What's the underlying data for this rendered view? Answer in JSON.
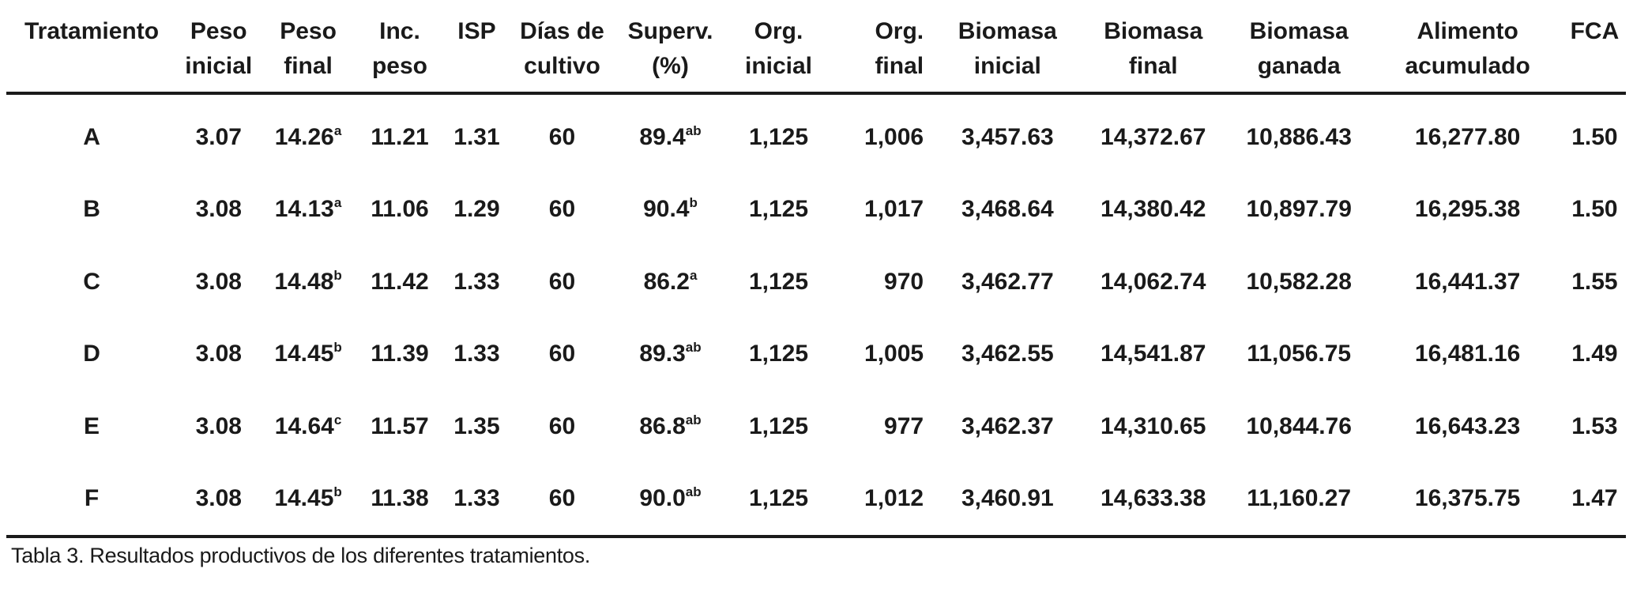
{
  "table": {
    "headers": [
      {
        "key": "tratamiento",
        "lines": [
          "Tratamiento"
        ]
      },
      {
        "key": "peso_inicial",
        "lines": [
          "Peso",
          "inicial"
        ]
      },
      {
        "key": "peso_final",
        "lines": [
          "Peso",
          "final"
        ]
      },
      {
        "key": "inc_peso",
        "lines": [
          "Inc.",
          "peso"
        ]
      },
      {
        "key": "isp",
        "lines": [
          "ISP"
        ]
      },
      {
        "key": "dias_cultivo",
        "lines": [
          "Días de",
          "cultivo"
        ]
      },
      {
        "key": "superv",
        "lines": [
          "Superv.",
          "(%)"
        ]
      },
      {
        "key": "org_inicial",
        "lines": [
          "Org.",
          "inicial"
        ]
      },
      {
        "key": "org_final",
        "lines": [
          "Org.",
          "final"
        ]
      },
      {
        "key": "biomasa_inicial",
        "lines": [
          "Biomasa",
          "inicial"
        ]
      },
      {
        "key": "biomasa_final",
        "lines": [
          "Biomasa",
          "final"
        ]
      },
      {
        "key": "biomasa_ganada",
        "lines": [
          "Biomasa",
          "ganada"
        ]
      },
      {
        "key": "alimento_acumulado",
        "lines": [
          "Alimento",
          "acumulado"
        ]
      },
      {
        "key": "fca",
        "lines": [
          "FCA"
        ]
      }
    ],
    "rows": [
      {
        "tratamiento": "A",
        "peso_inicial": "3.07",
        "peso_final": "14.26",
        "peso_final_sup": "a",
        "inc_peso": "11.21",
        "isp": "1.31",
        "dias_cultivo": "60",
        "superv": "89.4",
        "superv_sup": "ab",
        "org_inicial": "1,125",
        "org_final": "1,006",
        "biomasa_inicial": "3,457.63",
        "biomasa_final": "14,372.67",
        "biomasa_ganada": "10,886.43",
        "alimento_acumulado": "16,277.80",
        "fca": "1.50"
      },
      {
        "tratamiento": "B",
        "peso_inicial": "3.08",
        "peso_final": "14.13",
        "peso_final_sup": "a",
        "inc_peso": "11.06",
        "isp": "1.29",
        "dias_cultivo": "60",
        "superv": "90.4",
        "superv_sup": "b",
        "org_inicial": "1,125",
        "org_final": "1,017",
        "biomasa_inicial": "3,468.64",
        "biomasa_final": "14,380.42",
        "biomasa_ganada": "10,897.79",
        "alimento_acumulado": "16,295.38",
        "fca": "1.50"
      },
      {
        "tratamiento": "C",
        "peso_inicial": "3.08",
        "peso_final": "14.48",
        "peso_final_sup": "b",
        "inc_peso": "11.42",
        "isp": "1.33",
        "dias_cultivo": "60",
        "superv": "86.2",
        "superv_sup": "a",
        "org_inicial": "1,125",
        "org_final": "970",
        "biomasa_inicial": "3,462.77",
        "biomasa_final": "14,062.74",
        "biomasa_ganada": "10,582.28",
        "alimento_acumulado": "16,441.37",
        "fca": "1.55"
      },
      {
        "tratamiento": "D",
        "peso_inicial": "3.08",
        "peso_final": "14.45",
        "peso_final_sup": "b",
        "inc_peso": "11.39",
        "isp": "1.33",
        "dias_cultivo": "60",
        "superv": "89.3",
        "superv_sup": "ab",
        "org_inicial": "1,125",
        "org_final": "1,005",
        "biomasa_inicial": "3,462.55",
        "biomasa_final": "14,541.87",
        "biomasa_ganada": "11,056.75",
        "alimento_acumulado": "16,481.16",
        "fca": "1.49"
      },
      {
        "tratamiento": "E",
        "peso_inicial": "3.08",
        "peso_final": "14.64",
        "peso_final_sup": "c",
        "inc_peso": "11.57",
        "isp": "1.35",
        "dias_cultivo": "60",
        "superv": "86.8",
        "superv_sup": "ab",
        "org_inicial": "1,125",
        "org_final": "977",
        "biomasa_inicial": "3,462.37",
        "biomasa_final": "14,310.65",
        "biomasa_ganada": "10,844.76",
        "alimento_acumulado": "16,643.23",
        "fca": "1.53"
      },
      {
        "tratamiento": "F",
        "peso_inicial": "3.08",
        "peso_final": "14.45",
        "peso_final_sup": "b",
        "inc_peso": "11.38",
        "isp": "1.33",
        "dias_cultivo": "60",
        "superv": "90.0",
        "superv_sup": "ab",
        "org_inicial": "1,125",
        "org_final": "1,012",
        "biomasa_inicial": "3,460.91",
        "biomasa_final": "14,633.38",
        "biomasa_ganada": "11,160.27",
        "alimento_acumulado": "16,375.75",
        "fca": "1.47"
      }
    ]
  },
  "caption": {
    "label": "Tabla 3.",
    "text": "Resultados productivos de los diferentes tratamientos."
  }
}
